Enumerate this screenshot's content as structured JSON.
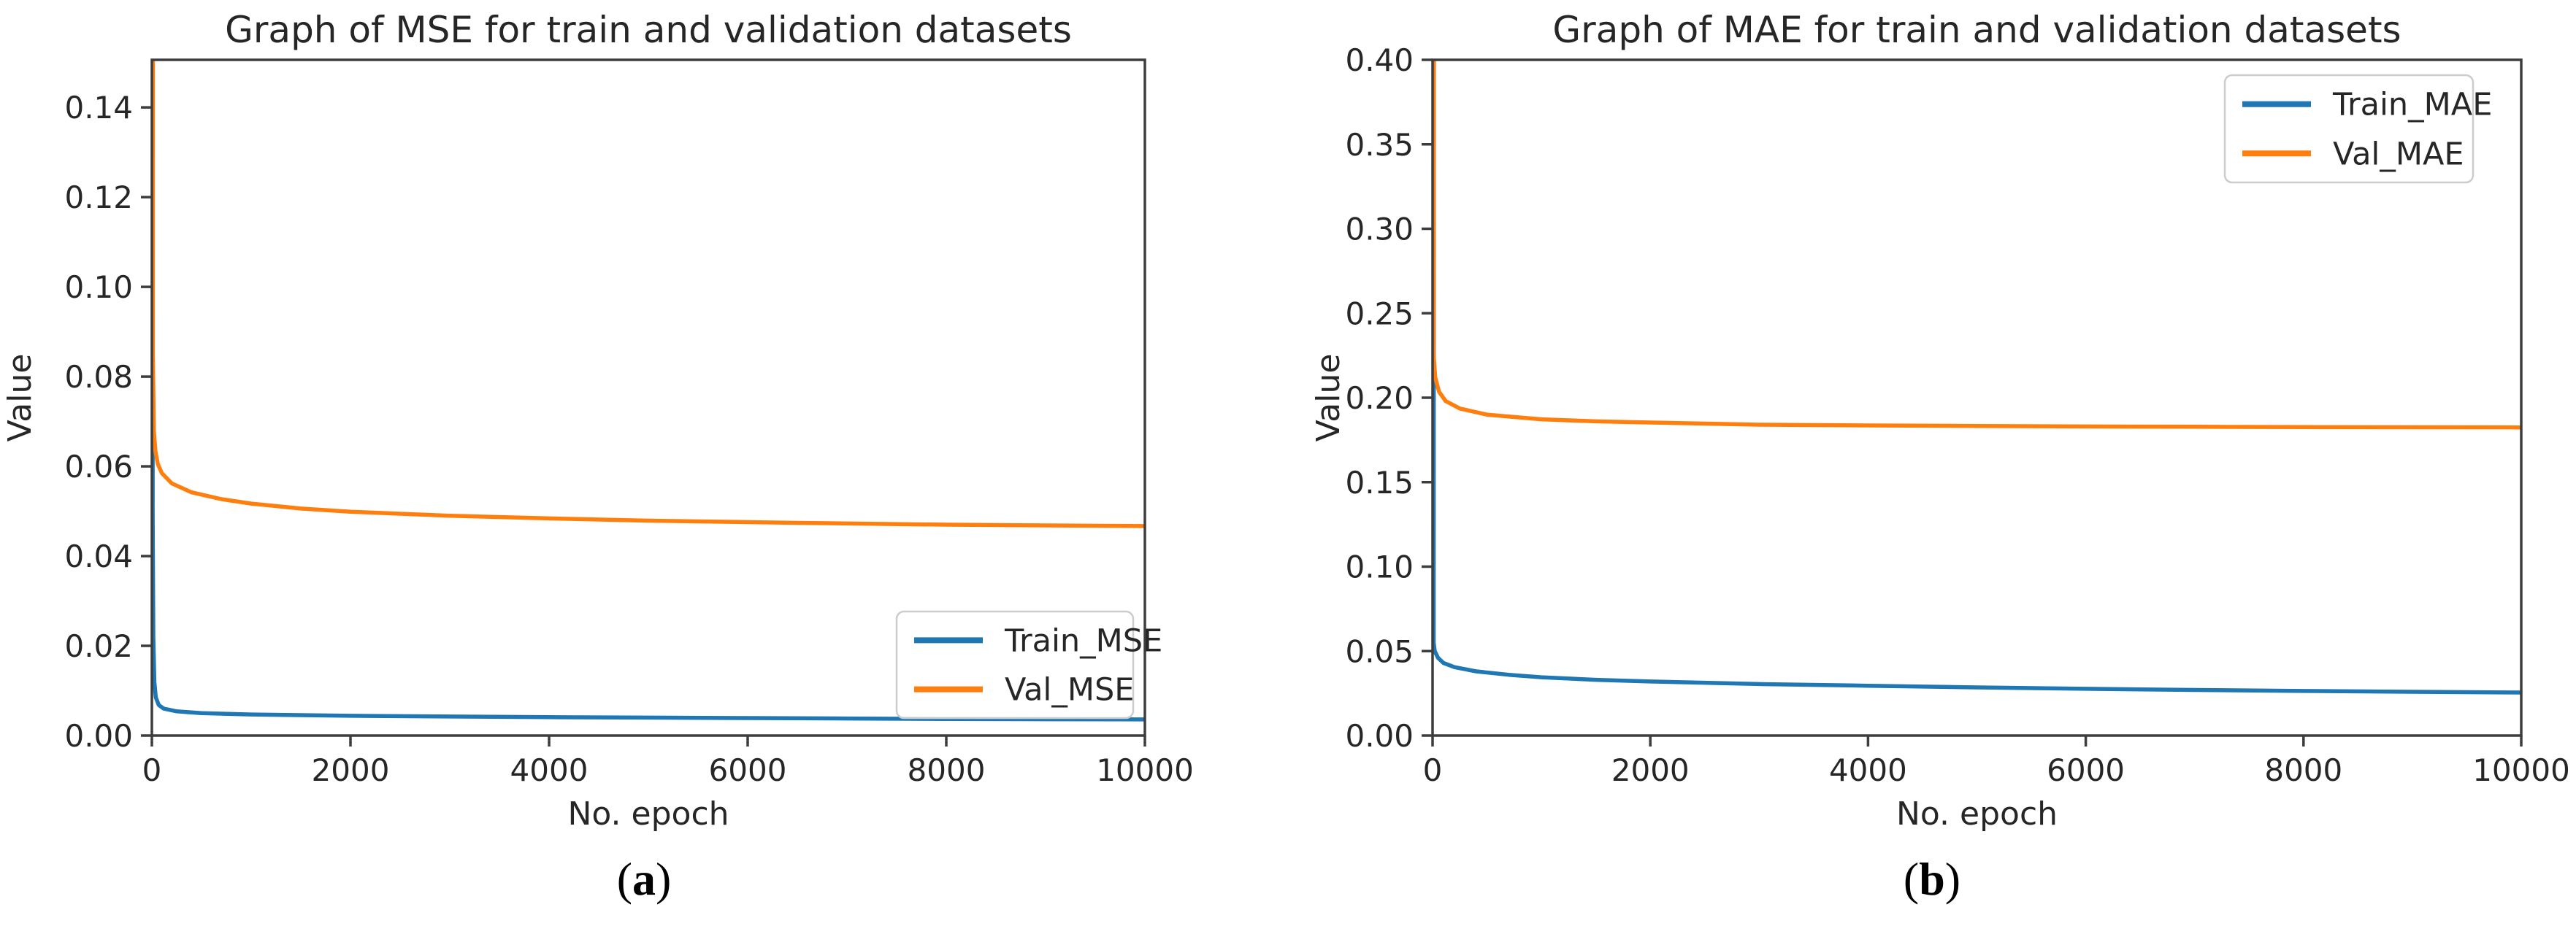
{
  "figure": {
    "captions": [
      {
        "prefix": "(",
        "letter": "a",
        "suffix": ")"
      },
      {
        "prefix": "(",
        "letter": "b",
        "suffix": ")"
      }
    ]
  },
  "colors": {
    "train_line": "#1f77b4",
    "val_line": "#ff7f0e",
    "spine": "#3d3d3d",
    "text": "#262626",
    "legend_border": "#cccccc",
    "legend_fill": "#ffffff"
  },
  "chart_data": [
    {
      "type": "line",
      "title": "Graph of MSE for train and validation datasets",
      "xlabel": "No. epoch",
      "ylabel": "Value",
      "xlim": [
        0,
        10000
      ],
      "ylim": [
        0,
        0.1506
      ],
      "grid": false,
      "legend_position": "lower right",
      "xticks": [
        0,
        2000,
        4000,
        6000,
        8000,
        10000
      ],
      "xtick_labels": [
        "0",
        "2000",
        "4000",
        "6000",
        "8000",
        "10000"
      ],
      "yticks": [
        0.0,
        0.02,
        0.04,
        0.06,
        0.08,
        0.1,
        0.12,
        0.14
      ],
      "ytick_labels": [
        "0.00",
        "0.02",
        "0.04",
        "0.06",
        "0.08",
        "0.10",
        "0.12",
        "0.14"
      ],
      "series": [
        {
          "name": "Train_MSE",
          "color": "#1f77b4",
          "x": [
            0,
            8,
            15,
            25,
            40,
            70,
            120,
            250,
            500,
            1000,
            2000,
            3000,
            4000,
            5000,
            6000,
            7000,
            8000,
            9000,
            10000
          ],
          "y": [
            0.6,
            0.05,
            0.022,
            0.012,
            0.0085,
            0.0068,
            0.006,
            0.0054,
            0.005,
            0.0047,
            0.0044,
            0.00425,
            0.0041,
            0.004,
            0.0039,
            0.0038,
            0.0037,
            0.00365,
            0.0036
          ]
        },
        {
          "name": "Val_MSE",
          "color": "#ff7f0e",
          "x": [
            0,
            10,
            20,
            35,
            60,
            100,
            200,
            400,
            700,
            1000,
            1500,
            2000,
            3000,
            4000,
            5000,
            6500,
            8000,
            10000
          ],
          "y": [
            0.6,
            0.085,
            0.068,
            0.0635,
            0.0605,
            0.0585,
            0.0562,
            0.0542,
            0.0527,
            0.0517,
            0.0506,
            0.0499,
            0.049,
            0.0484,
            0.0479,
            0.0474,
            0.047,
            0.0467
          ]
        }
      ]
    },
    {
      "type": "line",
      "title": "Graph of MAE for train and validation datasets",
      "xlabel": "No. epoch",
      "ylabel": "Value",
      "xlim": [
        0,
        10000
      ],
      "ylim": [
        0,
        0.4
      ],
      "grid": false,
      "legend_position": "upper right",
      "xticks": [
        0,
        2000,
        4000,
        6000,
        8000,
        10000
      ],
      "xtick_labels": [
        "0",
        "2000",
        "4000",
        "6000",
        "8000",
        "10000"
      ],
      "yticks": [
        0.0,
        0.05,
        0.1,
        0.15,
        0.2,
        0.25,
        0.3,
        0.35,
        0.4
      ],
      "ytick_labels": [
        "0.00",
        "0.05",
        "0.10",
        "0.15",
        "0.20",
        "0.25",
        "0.30",
        "0.35",
        "0.40"
      ],
      "series": [
        {
          "name": "Train_MAE",
          "color": "#1f77b4",
          "x": [
            0,
            10,
            20,
            50,
            100,
            200,
            400,
            700,
            1000,
            1500,
            2000,
            3000,
            4000,
            5000,
            6000,
            7000,
            8000,
            9000,
            10000
          ],
          "y": [
            0.6,
            0.055,
            0.05,
            0.046,
            0.043,
            0.0405,
            0.038,
            0.036,
            0.0345,
            0.033,
            0.032,
            0.0305,
            0.0295,
            0.0285,
            0.0277,
            0.027,
            0.0264,
            0.0259,
            0.0255
          ]
        },
        {
          "name": "Val_MAE",
          "color": "#ff7f0e",
          "x": [
            0,
            10,
            25,
            60,
            120,
            250,
            500,
            1000,
            1500,
            2000,
            3000,
            4000,
            5000,
            6000,
            7000,
            8000,
            9000,
            10000
          ],
          "y": [
            0.6,
            0.225,
            0.212,
            0.2035,
            0.198,
            0.1936,
            0.19,
            0.1872,
            0.186,
            0.1853,
            0.184,
            0.1836,
            0.1833,
            0.183,
            0.1828,
            0.1826,
            0.1825,
            0.1824
          ]
        }
      ]
    }
  ]
}
